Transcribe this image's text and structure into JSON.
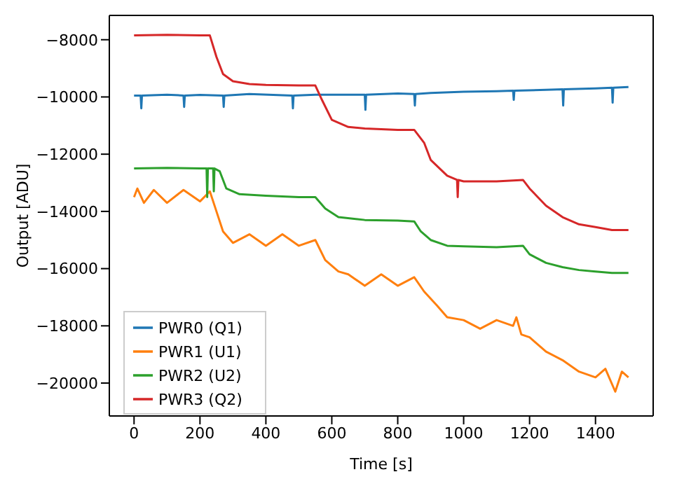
{
  "chart_data": {
    "type": "line",
    "xlabel": "Time [s]",
    "ylabel": "Output [ADU]",
    "xlim": [
      -75,
      1575
    ],
    "xticks": [
      0,
      200,
      400,
      600,
      800,
      1000,
      1200,
      1400
    ],
    "ylim": [
      -21150,
      -7150
    ],
    "yticks": [
      -20000,
      -18000,
      -16000,
      -14000,
      -12000,
      -10000,
      -8000
    ],
    "grid": false,
    "legend": "bottom left",
    "marker": "none",
    "line_style": "solid",
    "series": [
      {
        "name": "PWR0 (Q1)",
        "color": "#1f77b4",
        "x": [
          0,
          20,
          22,
          24,
          100,
          150,
          152,
          154,
          200,
          270,
          272,
          274,
          350,
          480,
          482,
          484,
          550,
          700,
          702,
          704,
          800,
          850,
          852,
          854,
          900,
          1000,
          1100,
          1150,
          1152,
          1154,
          1250,
          1300,
          1302,
          1304,
          1400,
          1450,
          1452,
          1454,
          1500
        ],
        "values": [
          -9950,
          -9950,
          -10400,
          -9950,
          -9920,
          -9950,
          -10350,
          -9950,
          -9930,
          -9950,
          -10350,
          -9950,
          -9900,
          -9950,
          -10400,
          -9950,
          -9920,
          -9920,
          -10450,
          -9920,
          -9880,
          -9900,
          -10300,
          -9900,
          -9860,
          -9820,
          -9800,
          -9780,
          -10100,
          -9780,
          -9750,
          -9730,
          -10300,
          -9730,
          -9700,
          -9680,
          -10200,
          -9680,
          -9650
        ]
      },
      {
        "name": "PWR1 (U1)",
        "color": "#ff7f0e",
        "x": [
          0,
          10,
          30,
          60,
          100,
          150,
          200,
          230,
          250,
          270,
          300,
          350,
          400,
          450,
          500,
          550,
          580,
          620,
          650,
          700,
          750,
          800,
          850,
          880,
          920,
          950,
          1000,
          1050,
          1100,
          1150,
          1160,
          1175,
          1200,
          1250,
          1300,
          1350,
          1400,
          1430,
          1460,
          1480,
          1500
        ],
        "values": [
          -13500,
          -13200,
          -13700,
          -13250,
          -13700,
          -13250,
          -13650,
          -13300,
          -14000,
          -14700,
          -15100,
          -14800,
          -15200,
          -14800,
          -15200,
          -15000,
          -15700,
          -16100,
          -16200,
          -16600,
          -16200,
          -16600,
          -16300,
          -16800,
          -17300,
          -17700,
          -17800,
          -18100,
          -17800,
          -18000,
          -17700,
          -18300,
          -18400,
          -18900,
          -19200,
          -19600,
          -19800,
          -19500,
          -20300,
          -19600,
          -19800
        ]
      },
      {
        "name": "PWR2 (U2)",
        "color": "#2ca02c",
        "x": [
          0,
          100,
          200,
          220,
          222,
          224,
          240,
          242,
          244,
          260,
          280,
          320,
          400,
          500,
          550,
          580,
          620,
          700,
          800,
          850,
          870,
          900,
          950,
          1000,
          1100,
          1180,
          1200,
          1250,
          1300,
          1350,
          1400,
          1450,
          1500
        ],
        "values": [
          -12500,
          -12480,
          -12500,
          -12500,
          -13500,
          -12500,
          -12500,
          -13300,
          -12500,
          -12600,
          -13200,
          -13400,
          -13450,
          -13500,
          -13500,
          -13900,
          -14200,
          -14300,
          -14320,
          -14350,
          -14700,
          -15000,
          -15200,
          -15220,
          -15250,
          -15200,
          -15500,
          -15800,
          -15950,
          -16050,
          -16100,
          -16150,
          -16150
        ]
      },
      {
        "name": "PWR3 (Q2)",
        "color": "#d62728",
        "x": [
          0,
          100,
          200,
          230,
          250,
          270,
          300,
          350,
          400,
          500,
          550,
          570,
          600,
          650,
          700,
          800,
          850,
          880,
          900,
          950,
          980,
          982,
          984,
          1000,
          1100,
          1180,
          1200,
          1250,
          1300,
          1350,
          1400,
          1450,
          1500
        ],
        "values": [
          -7850,
          -7830,
          -7850,
          -7850,
          -8600,
          -9200,
          -9450,
          -9550,
          -9580,
          -9600,
          -9600,
          -10100,
          -10800,
          -11050,
          -11100,
          -11150,
          -11150,
          -11600,
          -12200,
          -12750,
          -12900,
          -13500,
          -12900,
          -12950,
          -12950,
          -12900,
          -13200,
          -13800,
          -14200,
          -14450,
          -14550,
          -14650,
          -14650
        ]
      }
    ]
  }
}
